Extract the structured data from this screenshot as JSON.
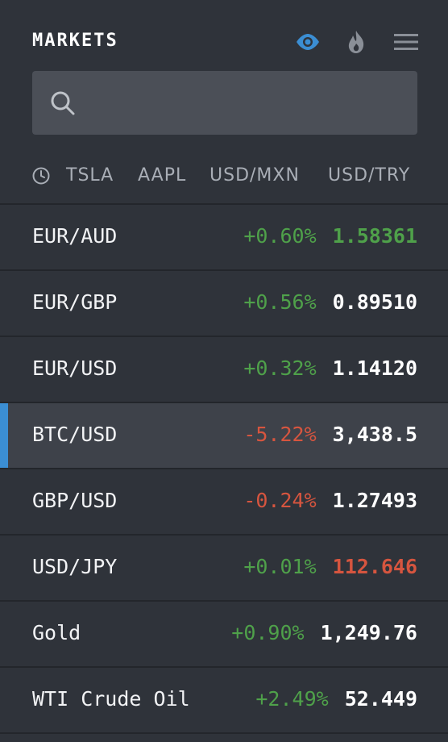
{
  "header": {
    "title": "MARKETS",
    "icons": [
      "eye-icon",
      "flame-icon",
      "menu-icon"
    ],
    "accent": "#3b8ed3"
  },
  "search": {
    "placeholder": "",
    "value": ""
  },
  "quick_links": {
    "icon": "clock-icon",
    "items": [
      "TSLA",
      "AAPL",
      "USD/MXN",
      "USD/TRY"
    ]
  },
  "colors": {
    "positive": "#4fa14a",
    "negative": "#d6553f",
    "selected_marker": "#3b8ed3"
  },
  "markets": [
    {
      "name": "EUR/AUD",
      "change": "+0.60%",
      "price": "1.58361"
    },
    {
      "name": "EUR/GBP",
      "change": "+0.56%",
      "price": "0.89510"
    },
    {
      "name": "EUR/USD",
      "change": "+0.32%",
      "price": "1.14120"
    },
    {
      "name": "BTC/USD",
      "change": "-5.22%",
      "price": "3,438.5"
    },
    {
      "name": "GBP/USD",
      "change": "-0.24%",
      "price": "1.27493"
    },
    {
      "name": "USD/JPY",
      "change": "+0.01%",
      "price": "112.646"
    },
    {
      "name": "Gold",
      "change": "+0.90%",
      "price": "1,249.76"
    },
    {
      "name": "WTI Crude Oil",
      "change": "+2.49%",
      "price": "52.449"
    }
  ]
}
